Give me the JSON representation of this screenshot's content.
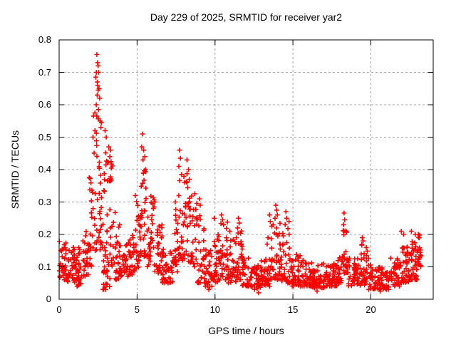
{
  "chart_data": {
    "type": "scatter",
    "title": "Day 229 of 2025, SRMTID for receiver yar2",
    "xlabel": "GPS time / hours",
    "ylabel": "SRMTID / TECUs",
    "xlim": [
      0,
      24
    ],
    "ylim": [
      0,
      0.8
    ],
    "xticks": [
      0,
      5,
      10,
      15,
      20
    ],
    "yticks": [
      0,
      0.1,
      0.2,
      0.3,
      0.4,
      0.5,
      0.6,
      0.7,
      0.8
    ],
    "grid": true,
    "legend": "none",
    "marker": "plus",
    "marker_color": "#ff0000",
    "grid_color": "#a0a0a0",
    "axis_color": "#000000",
    "background_color": "#ffffff",
    "data_time_range_hours": [
      0.0,
      23.25
    ],
    "band_segments": [
      [
        0.0,
        0.5,
        0.06,
        0.18,
        32
      ],
      [
        0.5,
        1.0,
        0.05,
        0.16,
        32
      ],
      [
        1.0,
        1.5,
        0.04,
        0.17,
        32
      ],
      [
        1.5,
        1.9,
        0.07,
        0.22,
        26
      ],
      [
        1.9,
        2.2,
        0.1,
        0.4,
        20
      ],
      [
        2.2,
        2.75,
        0.15,
        0.62,
        40
      ],
      [
        2.75,
        3.1,
        0.08,
        0.48,
        26
      ],
      [
        2.8,
        3.25,
        0.03,
        0.1,
        14
      ],
      [
        3.1,
        3.45,
        0.1,
        0.46,
        24
      ],
      [
        3.45,
        3.9,
        0.06,
        0.27,
        30
      ],
      [
        3.9,
        4.35,
        0.07,
        0.17,
        28
      ],
      [
        4.35,
        4.85,
        0.07,
        0.2,
        30
      ],
      [
        4.85,
        5.2,
        0.09,
        0.33,
        24
      ],
      [
        5.2,
        5.65,
        0.13,
        0.47,
        32
      ],
      [
        5.65,
        6.1,
        0.1,
        0.33,
        30
      ],
      [
        6.1,
        6.6,
        0.08,
        0.25,
        30
      ],
      [
        6.6,
        7.3,
        0.05,
        0.16,
        42
      ],
      [
        7.3,
        7.65,
        0.08,
        0.28,
        22
      ],
      [
        7.65,
        8.25,
        0.12,
        0.42,
        40
      ],
      [
        8.25,
        8.85,
        0.1,
        0.35,
        40
      ],
      [
        8.85,
        9.35,
        0.05,
        0.26,
        32
      ],
      [
        9.35,
        9.85,
        0.04,
        0.16,
        30
      ],
      [
        9.85,
        10.35,
        0.05,
        0.2,
        32
      ],
      [
        10.35,
        10.85,
        0.06,
        0.24,
        32
      ],
      [
        10.85,
        11.35,
        0.05,
        0.19,
        32
      ],
      [
        11.35,
        11.75,
        0.06,
        0.22,
        26
      ],
      [
        11.75,
        12.35,
        0.04,
        0.13,
        36
      ],
      [
        12.35,
        12.95,
        0.03,
        0.12,
        36
      ],
      [
        12.95,
        13.55,
        0.04,
        0.13,
        36
      ],
      [
        13.55,
        14.2,
        0.06,
        0.24,
        40
      ],
      [
        14.2,
        14.95,
        0.05,
        0.22,
        45
      ],
      [
        14.95,
        15.55,
        0.04,
        0.14,
        36
      ],
      [
        15.55,
        16.25,
        0.04,
        0.12,
        42
      ],
      [
        16.25,
        17.05,
        0.035,
        0.11,
        48
      ],
      [
        17.05,
        17.85,
        0.04,
        0.11,
        48
      ],
      [
        17.85,
        18.15,
        0.05,
        0.14,
        18
      ],
      [
        18.15,
        18.55,
        0.08,
        0.23,
        28
      ],
      [
        18.55,
        19.25,
        0.04,
        0.13,
        42
      ],
      [
        19.25,
        19.85,
        0.04,
        0.17,
        36
      ],
      [
        19.85,
        20.55,
        0.03,
        0.11,
        42
      ],
      [
        20.55,
        21.25,
        0.03,
        0.1,
        42
      ],
      [
        21.25,
        21.85,
        0.04,
        0.13,
        36
      ],
      [
        21.85,
        22.45,
        0.05,
        0.17,
        40
      ],
      [
        22.45,
        23.0,
        0.06,
        0.19,
        40
      ],
      [
        23.0,
        23.25,
        0.1,
        0.2,
        18
      ]
    ],
    "peak_points": [
      [
        2.42,
        0.755
      ],
      [
        2.47,
        0.73
      ],
      [
        2.5,
        0.72
      ],
      [
        2.39,
        0.7
      ],
      [
        2.53,
        0.7
      ],
      [
        2.35,
        0.685
      ],
      [
        2.45,
        0.67
      ],
      [
        2.47,
        0.66
      ],
      [
        2.56,
        0.65
      ],
      [
        2.5,
        0.645
      ],
      [
        2.44,
        0.63
      ],
      [
        2.6,
        0.62
      ],
      [
        2.38,
        0.6
      ],
      [
        2.52,
        0.585
      ],
      [
        2.42,
        0.565
      ],
      [
        2.63,
        0.55
      ],
      [
        2.3,
        0.52
      ],
      [
        2.68,
        0.53
      ],
      [
        2.95,
        0.52
      ],
      [
        3.02,
        0.5
      ],
      [
        2.17,
        0.5
      ],
      [
        3.18,
        0.47
      ],
      [
        3.3,
        0.46
      ],
      [
        3.25,
        0.44
      ],
      [
        5.35,
        0.51
      ],
      [
        5.3,
        0.47
      ],
      [
        5.42,
        0.46
      ],
      [
        5.5,
        0.44
      ],
      [
        5.38,
        0.43
      ],
      [
        5.55,
        0.4
      ],
      [
        6.05,
        0.28
      ],
      [
        6.15,
        0.3
      ],
      [
        7.45,
        0.3
      ],
      [
        7.72,
        0.46
      ],
      [
        7.78,
        0.435
      ],
      [
        7.68,
        0.41
      ],
      [
        8.2,
        0.43
      ],
      [
        8.3,
        0.4
      ],
      [
        7.85,
        0.385
      ],
      [
        8.35,
        0.37
      ],
      [
        9.0,
        0.31
      ],
      [
        9.05,
        0.29
      ],
      [
        9.95,
        0.25
      ],
      [
        10.42,
        0.26
      ],
      [
        10.48,
        0.245
      ],
      [
        10.55,
        0.23
      ],
      [
        10.95,
        0.21
      ],
      [
        11.45,
        0.22
      ],
      [
        11.5,
        0.25
      ],
      [
        11.55,
        0.235
      ],
      [
        13.35,
        0.17
      ],
      [
        13.4,
        0.19
      ],
      [
        13.5,
        0.26
      ],
      [
        13.55,
        0.24
      ],
      [
        13.85,
        0.25
      ],
      [
        13.9,
        0.29
      ],
      [
        13.95,
        0.275
      ],
      [
        14.0,
        0.26
      ],
      [
        14.5,
        0.23
      ],
      [
        14.55,
        0.27
      ],
      [
        14.6,
        0.25
      ],
      [
        14.75,
        0.24
      ],
      [
        18.25,
        0.23
      ],
      [
        18.28,
        0.266
      ],
      [
        18.32,
        0.245
      ],
      [
        19.45,
        0.19
      ],
      [
        19.5,
        0.18
      ],
      [
        21.95,
        0.21
      ],
      [
        22.1,
        0.2
      ],
      [
        22.6,
        0.21
      ],
      [
        22.85,
        0.2
      ],
      [
        23.05,
        0.2
      ],
      [
        23.1,
        0.19
      ],
      [
        9.6,
        0.03
      ],
      [
        12.8,
        0.02
      ],
      [
        16.55,
        0.025
      ],
      [
        20.6,
        0.025
      ],
      [
        21.0,
        0.03
      ]
    ]
  }
}
